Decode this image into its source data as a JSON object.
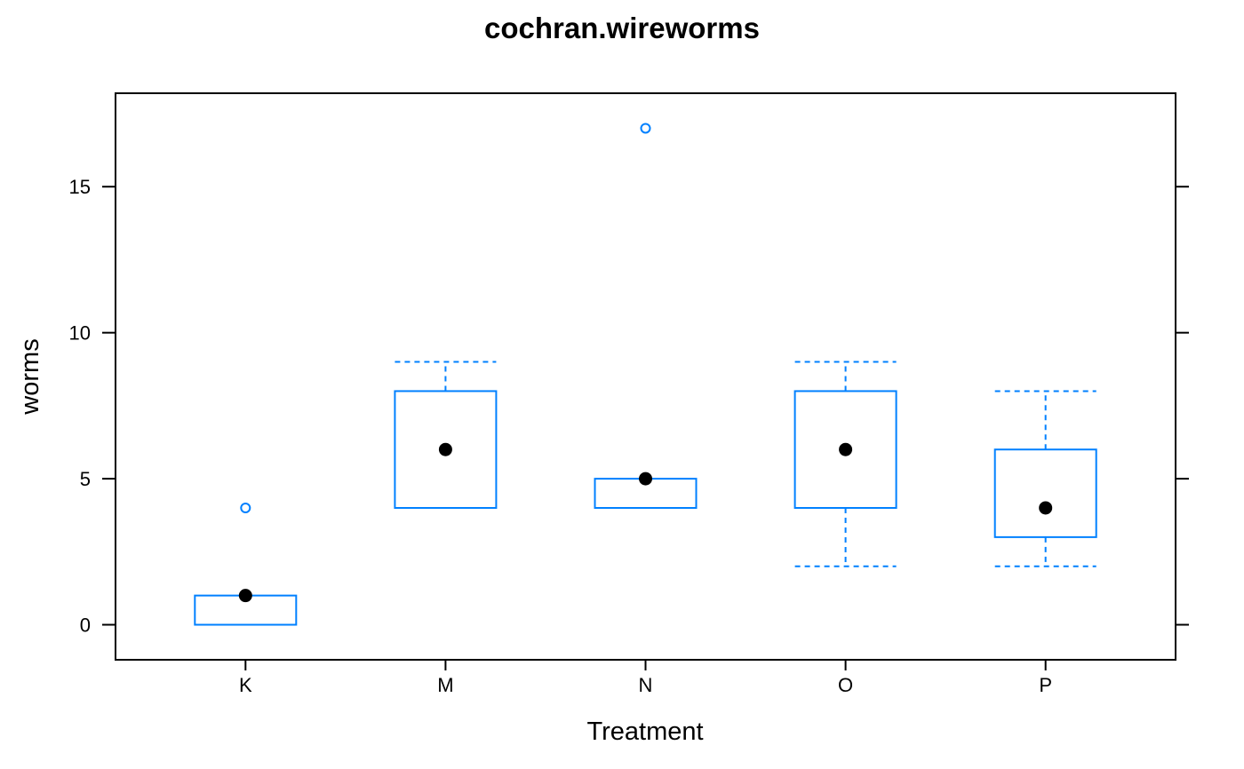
{
  "chart_data": {
    "type": "box",
    "title": "cochran.wireworms",
    "xlabel": "Treatment",
    "ylabel": "worms",
    "ylim": [
      -1.2,
      18.2
    ],
    "yticks": [
      0,
      5,
      10,
      15
    ],
    "categories": [
      "K",
      "M",
      "N",
      "O",
      "P"
    ],
    "boxes": [
      {
        "category": "K",
        "whisker_low": 0,
        "q1": 0,
        "median": 1,
        "q3": 1,
        "whisker_high": 1,
        "outliers": [
          4
        ]
      },
      {
        "category": "M",
        "whisker_low": 4,
        "q1": 4,
        "median": 6,
        "q3": 8,
        "whisker_high": 9,
        "outliers": []
      },
      {
        "category": "N",
        "whisker_low": 4,
        "q1": 4,
        "median": 5,
        "q3": 5,
        "whisker_high": 5,
        "outliers": [
          17
        ]
      },
      {
        "category": "O",
        "whisker_low": 2,
        "q1": 4,
        "median": 6,
        "q3": 8,
        "whisker_high": 9,
        "outliers": []
      },
      {
        "category": "P",
        "whisker_low": 2,
        "q1": 3,
        "median": 4,
        "q3": 6,
        "whisker_high": 8,
        "outliers": []
      }
    ],
    "colors": {
      "box": "#0080ff",
      "median_dot": "#000000",
      "axis": "#000000"
    }
  }
}
